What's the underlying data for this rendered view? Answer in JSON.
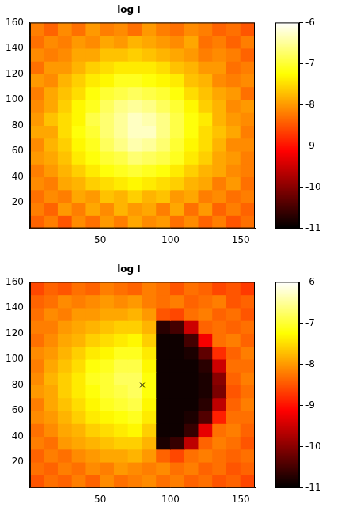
{
  "chart_data": [
    {
      "type": "heatmap",
      "title": "log I",
      "color": "hot",
      "grid": false,
      "x_edges": [
        0,
        10,
        20,
        30,
        40,
        50,
        60,
        70,
        80,
        90,
        100,
        110,
        120,
        130,
        140,
        150,
        160
      ],
      "y_edges": [
        0,
        10,
        20,
        30,
        40,
        50,
        60,
        70,
        80,
        90,
        100,
        110,
        120,
        130,
        140,
        150,
        160
      ],
      "xlim": [
        0,
        160
      ],
      "ylim": [
        0,
        160
      ],
      "xticks": [
        50,
        100,
        150
      ],
      "yticks": [
        20,
        40,
        60,
        80,
        100,
        120,
        140,
        160
      ],
      "colorbar": {
        "range": [
          -11,
          -6
        ],
        "ticks": [
          -11,
          -10,
          -9,
          -8,
          -7,
          -6
        ]
      },
      "cells": [
        [
          -8.4,
          -8.2,
          -8.5,
          -8.1,
          -8.3,
          -8.0,
          -8.2,
          -7.9,
          -8.1,
          -8.0,
          -8.3,
          -8.1,
          -8.4,
          -8.2,
          -8.5,
          -8.3
        ],
        [
          -8.2,
          -8.4,
          -8.0,
          -8.2,
          -7.9,
          -8.1,
          -7.8,
          -8.0,
          -7.9,
          -8.2,
          -7.9,
          -8.3,
          -8.0,
          -8.4,
          -8.2,
          -8.4
        ],
        [
          -8.3,
          -8.1,
          -8.2,
          -7.9,
          -8.0,
          -7.7,
          -7.8,
          -7.6,
          -7.8,
          -7.7,
          -8.0,
          -7.9,
          -8.2,
          -8.1,
          -8.3,
          -8.2
        ],
        [
          -8.1,
          -8.2,
          -7.9,
          -7.8,
          -7.6,
          -7.5,
          -7.4,
          -7.3,
          -7.4,
          -7.5,
          -7.6,
          -7.8,
          -7.9,
          -8.2,
          -8.0,
          -8.3
        ],
        [
          -8.2,
          -8.0,
          -7.8,
          -7.6,
          -7.4,
          -7.2,
          -7.1,
          -7.0,
          -7.1,
          -7.2,
          -7.4,
          -7.6,
          -7.8,
          -7.9,
          -8.1,
          -8.2
        ],
        [
          -8.0,
          -7.9,
          -7.7,
          -7.4,
          -7.2,
          -7.0,
          -6.9,
          -6.7,
          -6.8,
          -6.9,
          -7.1,
          -7.4,
          -7.6,
          -7.9,
          -8.0,
          -8.2
        ],
        [
          -8.1,
          -7.8,
          -7.6,
          -7.3,
          -7.1,
          -6.8,
          -6.6,
          -6.4,
          -6.5,
          -6.7,
          -7.0,
          -7.3,
          -7.5,
          -7.8,
          -8.1,
          -8.1
        ],
        [
          -7.9,
          -7.9,
          -7.5,
          -7.2,
          -7.0,
          -6.7,
          -6.5,
          -6.3,
          -6.3,
          -6.6,
          -6.9,
          -7.2,
          -7.5,
          -7.7,
          -7.9,
          -8.2
        ],
        [
          -8.0,
          -7.7,
          -7.5,
          -7.3,
          -6.9,
          -6.7,
          -6.5,
          -6.3,
          -6.4,
          -6.6,
          -6.9,
          -7.2,
          -7.4,
          -7.8,
          -8.0,
          -8.1
        ],
        [
          -8.1,
          -7.9,
          -7.6,
          -7.3,
          -7.1,
          -6.8,
          -6.6,
          -6.5,
          -6.6,
          -6.8,
          -7.0,
          -7.3,
          -7.6,
          -7.8,
          -8.1,
          -8.0
        ],
        [
          -8.2,
          -7.9,
          -7.7,
          -7.5,
          -7.2,
          -7.0,
          -6.9,
          -6.8,
          -6.9,
          -7.0,
          -7.2,
          -7.5,
          -7.7,
          -7.9,
          -8.0,
          -8.3
        ],
        [
          -8.0,
          -8.1,
          -7.8,
          -7.6,
          -7.4,
          -7.3,
          -7.1,
          -7.1,
          -7.2,
          -7.3,
          -7.4,
          -7.7,
          -7.8,
          -8.1,
          -8.2,
          -8.1
        ],
        [
          -8.3,
          -8.0,
          -8.0,
          -7.8,
          -7.6,
          -7.5,
          -7.4,
          -7.4,
          -7.4,
          -7.5,
          -7.7,
          -7.8,
          -8.0,
          -8.0,
          -8.3,
          -8.2
        ],
        [
          -8.1,
          -8.2,
          -8.1,
          -7.9,
          -7.9,
          -7.7,
          -7.7,
          -7.6,
          -7.7,
          -7.8,
          -7.9,
          -8.0,
          -8.2,
          -8.1,
          -8.2,
          -8.4
        ],
        [
          -8.3,
          -8.1,
          -8.2,
          -8.0,
          -8.1,
          -7.9,
          -8.0,
          -7.8,
          -7.9,
          -8.0,
          -8.1,
          -7.9,
          -8.3,
          -8.2,
          -8.4,
          -8.2
        ],
        [
          -8.2,
          -8.4,
          -8.1,
          -8.3,
          -8.0,
          -8.2,
          -8.1,
          -8.3,
          -8.0,
          -8.2,
          -8.3,
          -8.1,
          -8.2,
          -8.4,
          -8.3,
          -8.5
        ]
      ]
    },
    {
      "type": "heatmap",
      "title": "log I",
      "color": "hot",
      "grid": false,
      "x_edges": [
        0,
        10,
        20,
        30,
        40,
        50,
        60,
        70,
        80,
        90,
        100,
        110,
        120,
        130,
        140,
        150,
        160
      ],
      "y_edges": [
        0,
        10,
        20,
        30,
        40,
        50,
        60,
        70,
        80,
        90,
        100,
        110,
        120,
        130,
        140,
        150,
        160
      ],
      "xlim": [
        0,
        160
      ],
      "ylim": [
        0,
        160
      ],
      "xticks": [
        50,
        100,
        150
      ],
      "yticks": [
        20,
        40,
        60,
        80,
        100,
        120,
        140,
        160
      ],
      "colorbar": {
        "range": [
          -11,
          -6
        ],
        "ticks": [
          -11,
          -10,
          -9,
          -8,
          -7,
          -6
        ]
      },
      "points": {
        "x": [
          80
        ],
        "y": [
          80
        ],
        "marker": "x",
        "color": "#000000"
      },
      "cells": [
        [
          -8.5,
          -8.3,
          -8.4,
          -8.2,
          -8.4,
          -8.1,
          -8.3,
          -8.2,
          -8.1,
          -8.3,
          -8.2,
          -8.4,
          -8.3,
          -8.5,
          -8.4,
          -8.6
        ],
        [
          -8.3,
          -8.4,
          -8.2,
          -8.3,
          -8.1,
          -8.2,
          -8.0,
          -8.1,
          -8.2,
          -8.1,
          -8.3,
          -8.2,
          -8.4,
          -8.3,
          -8.5,
          -8.4
        ],
        [
          -8.4,
          -8.2,
          -8.3,
          -8.1,
          -8.0,
          -7.9,
          -7.9,
          -7.8,
          -8.0,
          -8.4,
          -8.6,
          -8.3,
          -8.2,
          -8.3,
          -8.4,
          -8.3
        ],
        [
          -8.2,
          -8.3,
          -8.0,
          -7.9,
          -7.8,
          -7.7,
          -7.6,
          -7.6,
          -7.8,
          -10.8,
          -10.6,
          -9.6,
          -8.4,
          -8.2,
          -8.3,
          -8.5
        ],
        [
          -8.3,
          -8.1,
          -7.9,
          -7.8,
          -7.6,
          -7.5,
          -7.4,
          -7.3,
          -7.6,
          -10.9,
          -10.9,
          -10.6,
          -9.3,
          -8.3,
          -8.2,
          -8.4
        ],
        [
          -8.1,
          -8.0,
          -7.8,
          -7.6,
          -7.4,
          -7.3,
          -7.2,
          -7.1,
          -7.4,
          -10.9,
          -10.9,
          -10.8,
          -10.4,
          -8.9,
          -8.3,
          -8.3
        ],
        [
          -8.2,
          -7.9,
          -7.7,
          -7.5,
          -7.3,
          -7.1,
          -7.0,
          -6.9,
          -7.3,
          -10.9,
          -10.9,
          -10.9,
          -10.7,
          -9.6,
          -8.4,
          -8.2
        ],
        [
          -8.0,
          -7.9,
          -7.6,
          -7.4,
          -7.2,
          -7.0,
          -6.9,
          -6.8,
          -7.2,
          -10.9,
          -10.9,
          -10.9,
          -10.8,
          -10.1,
          -8.5,
          -8.3
        ],
        [
          -8.1,
          -7.8,
          -7.6,
          -7.4,
          -7.1,
          -7.0,
          -6.8,
          -6.8,
          -7.2,
          -10.9,
          -10.9,
          -10.9,
          -10.8,
          -10.0,
          -8.4,
          -8.2
        ],
        [
          -8.2,
          -7.9,
          -7.7,
          -7.5,
          -7.2,
          -7.1,
          -6.9,
          -6.9,
          -7.3,
          -10.9,
          -10.9,
          -10.9,
          -10.7,
          -9.5,
          -8.3,
          -8.3
        ],
        [
          -8.1,
          -8.0,
          -7.8,
          -7.6,
          -7.4,
          -7.3,
          -7.1,
          -7.1,
          -7.4,
          -10.9,
          -10.9,
          -10.8,
          -10.3,
          -8.8,
          -8.4,
          -8.2
        ],
        [
          -8.3,
          -8.1,
          -7.9,
          -7.8,
          -7.6,
          -7.5,
          -7.4,
          -7.3,
          -7.6,
          -10.9,
          -10.9,
          -10.5,
          -9.2,
          -8.3,
          -8.2,
          -8.4
        ],
        [
          -8.2,
          -8.2,
          -8.0,
          -7.9,
          -7.8,
          -7.7,
          -7.6,
          -7.6,
          -7.8,
          -10.7,
          -10.5,
          -9.5,
          -8.4,
          -8.3,
          -8.4,
          -8.3
        ],
        [
          -8.3,
          -8.1,
          -8.2,
          -8.0,
          -8.0,
          -7.9,
          -7.9,
          -7.8,
          -8.0,
          -8.5,
          -8.6,
          -8.3,
          -8.2,
          -8.4,
          -8.3,
          -8.5
        ],
        [
          -8.4,
          -8.3,
          -8.1,
          -8.2,
          -8.1,
          -8.0,
          -8.1,
          -8.0,
          -8.2,
          -8.3,
          -8.2,
          -8.4,
          -8.3,
          -8.2,
          -8.5,
          -8.4
        ],
        [
          -8.6,
          -8.4,
          -8.5,
          -8.3,
          -8.4,
          -8.2,
          -8.3,
          -8.4,
          -8.2,
          -8.3,
          -8.5,
          -8.3,
          -8.4,
          -8.6,
          -8.5,
          -8.7
        ]
      ]
    }
  ]
}
